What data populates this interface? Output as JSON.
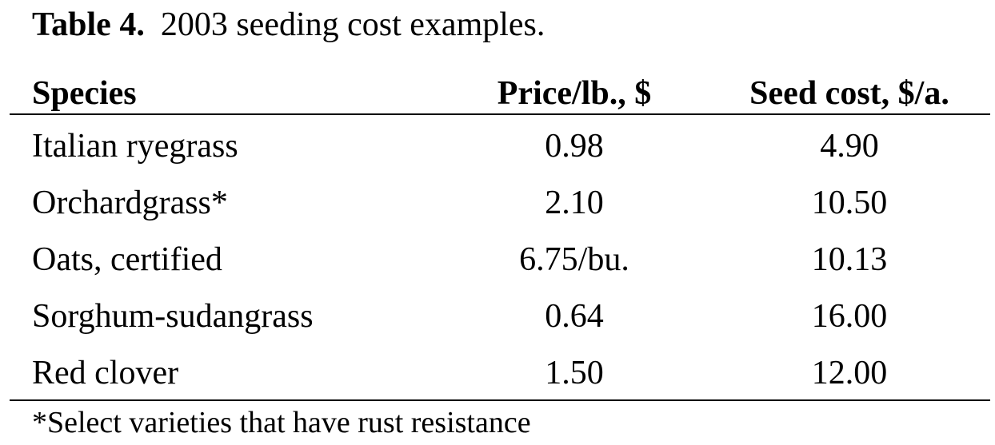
{
  "title": {
    "label": "Table 4.",
    "text": "2003 seeding cost examples."
  },
  "table": {
    "headers": [
      "Species",
      "Price/lb., $",
      "Seed cost, $/a."
    ],
    "rows": [
      [
        "Italian ryegrass",
        "0.98",
        "4.90"
      ],
      [
        "Orchardgrass*",
        "2.10",
        "10.50"
      ],
      [
        "Oats, certified",
        "6.75/bu.",
        "10.13"
      ],
      [
        "Sorghum-sudangrass",
        "0.64",
        "16.00"
      ],
      [
        "Red clover",
        "1.50",
        "12.00"
      ]
    ]
  },
  "footnote": "*Select varieties that have rust resistance"
}
